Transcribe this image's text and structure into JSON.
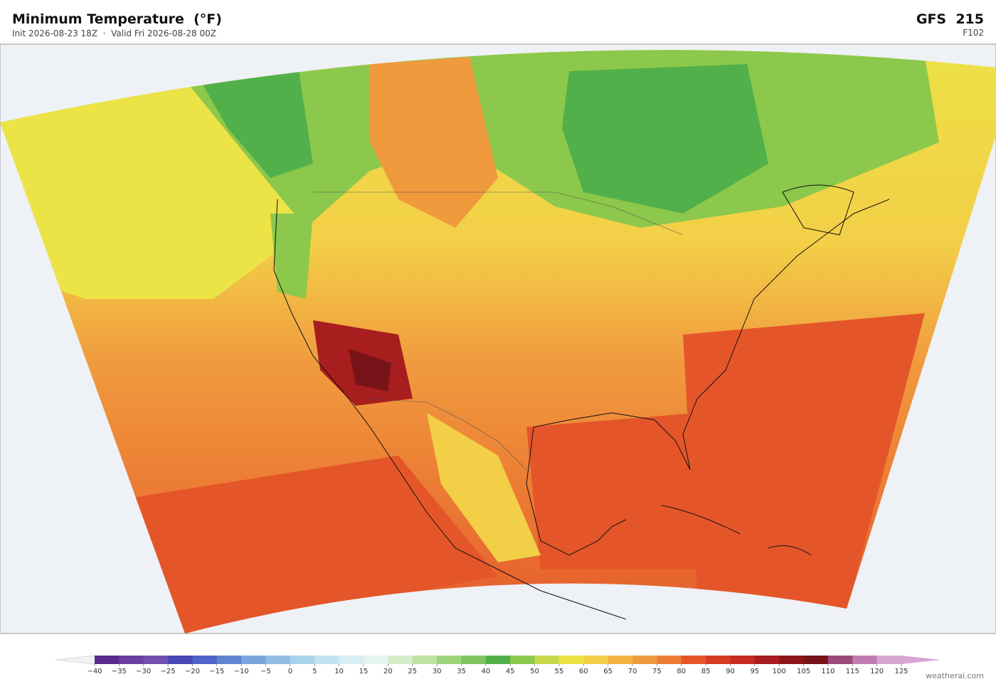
{
  "header": {
    "title": "Minimum Temperature  (°F)",
    "subtitle": "Init 2026-08-23 18Z  ·  Valid Fri 2026-08-28 00Z",
    "model": "GFS  215",
    "forecast_hour": "F102"
  },
  "colorbar": {
    "ticks": [
      {
        "value": -40,
        "label": "−40"
      },
      {
        "value": -35,
        "label": "−35"
      },
      {
        "value": -30,
        "label": "−30"
      },
      {
        "value": -25,
        "label": "−25"
      },
      {
        "value": -20,
        "label": "−20"
      },
      {
        "value": -15,
        "label": "−15"
      },
      {
        "value": -10,
        "label": "−10"
      },
      {
        "value": -5,
        "label": "−5"
      },
      0,
      5,
      10,
      15,
      20,
      25,
      30,
      35,
      40,
      45,
      50,
      55,
      60,
      65,
      70,
      75,
      80,
      85,
      90,
      95,
      100,
      105,
      110,
      115,
      120,
      125
    ],
    "colors": [
      "#5b2a8c",
      "#6b3fa0",
      "#7350b0",
      "#4a47b8",
      "#4f63c8",
      "#6184d0",
      "#7aa5dc",
      "#93bde2",
      "#a8d3ea",
      "#c2e3f0",
      "#d8eef2",
      "#e6f4ee",
      "#d4ecc8",
      "#bde3a0",
      "#9fd47c",
      "#7ec461",
      "#52b04a",
      "#8cc84b",
      "#c6d94a",
      "#ece346",
      "#f3cf47",
      "#f4b443",
      "#f09a3e",
      "#ec7c34",
      "#e4562a",
      "#d63d25",
      "#c42c22",
      "#a81d1e",
      "#8d1518",
      "#761419",
      "#9b4a7c",
      "#c07bb0",
      "#d8a6cf"
    ],
    "under_color": "#f2f2f2",
    "over_color": "#d9a3d3"
  },
  "watermark": "weatherai.com"
}
